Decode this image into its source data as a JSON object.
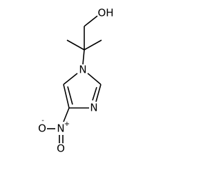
{
  "molecule": {
    "atoms": {
      "hydroxyl": "OH",
      "ring_n1": "N",
      "ring_n3": "N",
      "nitro_n": "N",
      "nitro_n_charge": "+",
      "nitro_o1": "O",
      "nitro_o1_charge": "-",
      "nitro_o2": "O"
    }
  }
}
